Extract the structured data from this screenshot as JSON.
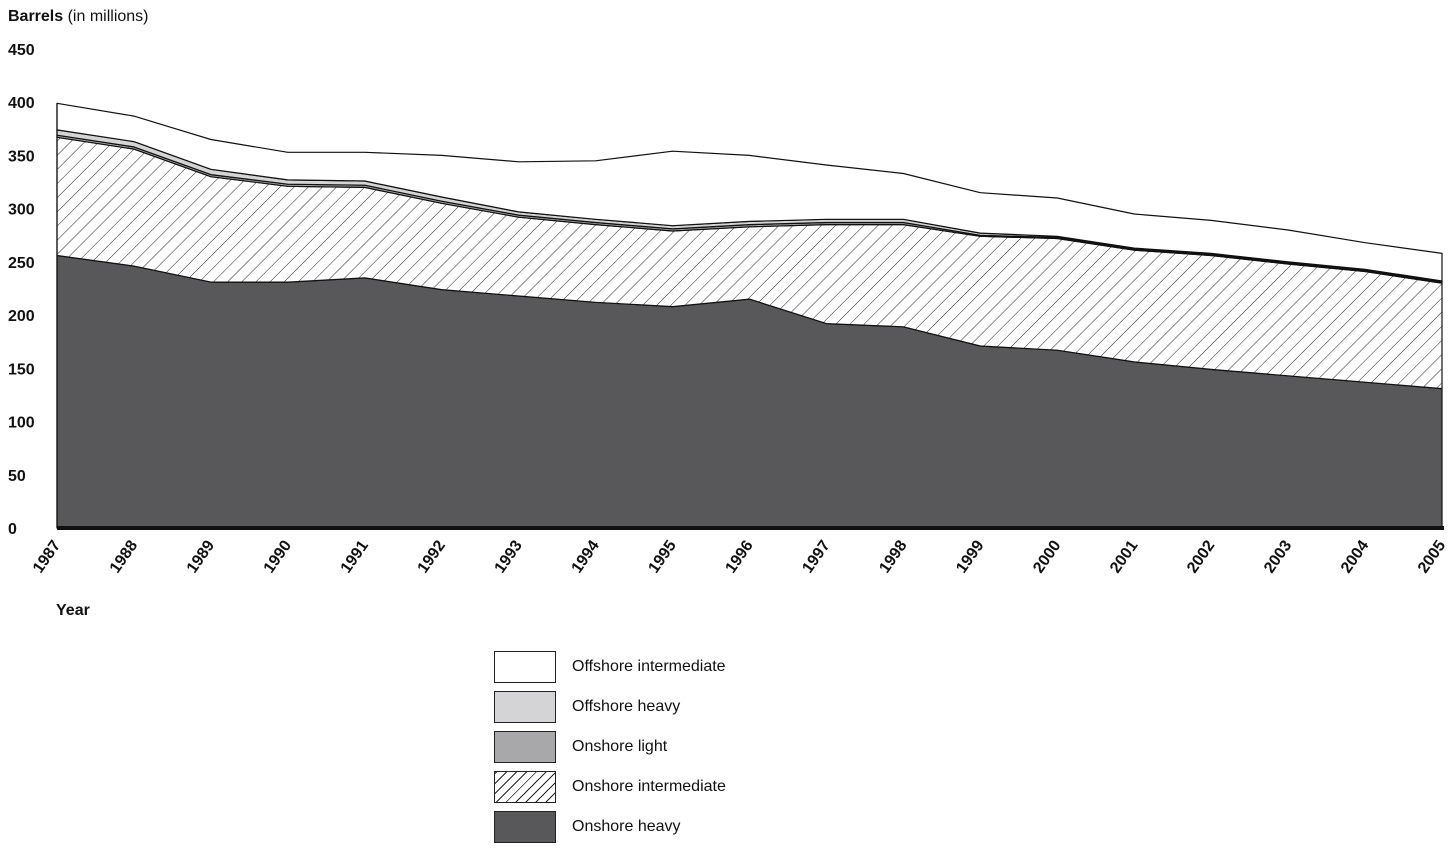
{
  "chart_data": {
    "type": "area",
    "stacked": true,
    "ylabel_bold": "Barrels",
    "ylabel_rest": " (in millions)",
    "xlabel": "Year",
    "ylim": [
      0,
      450
    ],
    "yticks": [
      "0",
      "50",
      "100",
      "150",
      "200",
      "250",
      "300",
      "350",
      "400",
      "450"
    ],
    "x": [
      "1987",
      "1988",
      "1989",
      "1990",
      "1991",
      "1992",
      "1993",
      "1994",
      "1995",
      "1996",
      "1997",
      "1998",
      "1999",
      "2000",
      "2001",
      "2002",
      "2003",
      "2004",
      "2005"
    ],
    "grid": false,
    "legend_position": "bottom-center",
    "series": [
      {
        "name": "Onshore heavy",
        "color": "#58585a",
        "pattern": "solid",
        "values": [
          256,
          246,
          231,
          231,
          235,
          224,
          218,
          212,
          208,
          215,
          192,
          189,
          171,
          167,
          156,
          149,
          143,
          137,
          131
        ]
      },
      {
        "name": "Onshore intermediate",
        "color": "#ffffff",
        "pattern": "hatched",
        "values": [
          111,
          110,
          99,
          90,
          85,
          81,
          74,
          73,
          71,
          68,
          93,
          96,
          103,
          105,
          105,
          107,
          105,
          104,
          99
        ]
      },
      {
        "name": "Onshore light",
        "color": "#a8a8aa",
        "pattern": "solid",
        "values": [
          2,
          2,
          2,
          2,
          2,
          2,
          2,
          2,
          2,
          2,
          2,
          2,
          1,
          1,
          1,
          1,
          1,
          1,
          1
        ]
      },
      {
        "name": "Offshore heavy",
        "color": "#d4d4d6",
        "pattern": "solid",
        "values": [
          5,
          5,
          5,
          4,
          4,
          4,
          3,
          3,
          3,
          3,
          3,
          3,
          2,
          1,
          1,
          1,
          1,
          1,
          1
        ]
      },
      {
        "name": "Offshore intermediate",
        "color": "#ffffff",
        "pattern": "solid",
        "values": [
          25,
          24,
          28,
          26,
          27,
          39,
          47,
          55,
          70,
          62,
          51,
          43,
          38,
          36,
          32,
          31,
          30,
          25,
          26
        ]
      }
    ],
    "legend_order": [
      "Offshore intermediate",
      "Offshore heavy",
      "Onshore light",
      "Onshore intermediate",
      "Onshore heavy"
    ]
  }
}
